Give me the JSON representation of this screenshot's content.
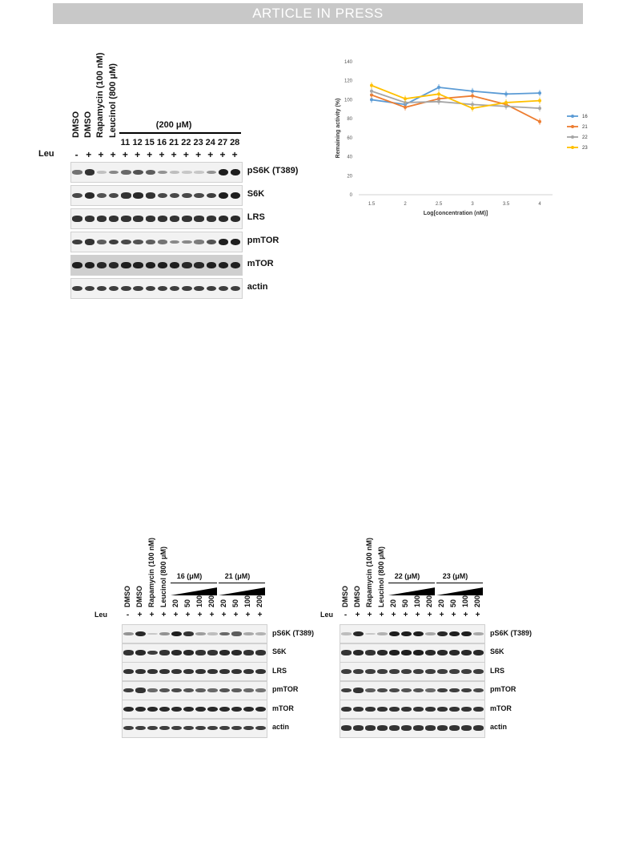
{
  "banner": "ARTICLE IN PRESS",
  "colors": {
    "s16": "#5b9bd5",
    "s21": "#ed7d31",
    "s22": "#a5a5a5",
    "s23": "#ffc000"
  },
  "panelA": {
    "leu_label": "Leu",
    "lane_labels": [
      "DMSO",
      "DMSO",
      "Rapamycin (100 nM)",
      "Leucinol (800 μM)"
    ],
    "group_header": "(200 μM)",
    "compounds": [
      "11",
      "12",
      "15",
      "16",
      "21",
      "22",
      "23",
      "24",
      "27",
      "28"
    ],
    "leu_signs": [
      "-",
      "+",
      "+",
      "+",
      "+",
      "+",
      "+",
      "+",
      "+",
      "+",
      "+",
      "+",
      "+",
      "+"
    ],
    "blots": [
      {
        "label": "pS6K (T389)",
        "bg": "light",
        "intensity": [
          0.45,
          0.75,
          0.08,
          0.35,
          0.5,
          0.6,
          0.55,
          0.3,
          0.1,
          0.05,
          0.05,
          0.3,
          1.0,
          1.0
        ]
      },
      {
        "label": "S6K",
        "bg": "light",
        "intensity": [
          0.65,
          0.8,
          0.6,
          0.65,
          0.75,
          0.8,
          0.75,
          0.65,
          0.65,
          0.65,
          0.65,
          0.7,
          1.0,
          1.0
        ]
      },
      {
        "label": "LRS",
        "bg": "light",
        "intensity": [
          0.75,
          0.75,
          0.75,
          0.75,
          0.75,
          0.75,
          0.75,
          0.75,
          0.75,
          0.75,
          0.75,
          0.75,
          0.8,
          0.8
        ]
      },
      {
        "label": "pmTOR",
        "bg": "light",
        "intensity": [
          0.7,
          0.75,
          0.55,
          0.7,
          0.65,
          0.6,
          0.55,
          0.45,
          0.35,
          0.35,
          0.4,
          0.6,
          0.9,
          0.95
        ]
      },
      {
        "label": "mTOR",
        "bg": "gray",
        "intensity": [
          0.85,
          0.85,
          0.8,
          0.8,
          0.85,
          0.85,
          0.85,
          0.85,
          0.85,
          0.8,
          0.8,
          0.85,
          0.95,
          0.95
        ]
      },
      {
        "label": "actin",
        "bg": "light",
        "intensity": [
          0.7,
          0.7,
          0.7,
          0.7,
          0.7,
          0.7,
          0.7,
          0.7,
          0.7,
          0.7,
          0.7,
          0.7,
          0.7,
          0.7
        ]
      }
    ]
  },
  "chart_data": {
    "type": "line",
    "title": "",
    "xlabel": "Log[concentration (nM)]",
    "ylabel": "Remaining activity (%)",
    "categories": [
      "1.5",
      "2",
      "2.5",
      "3",
      "3.5",
      "4"
    ],
    "yticks": [
      "0",
      "20",
      "40",
      "60",
      "80",
      "100",
      "120",
      "140"
    ],
    "ylim": [
      0,
      140
    ],
    "grid": false,
    "legend": "right",
    "series": [
      {
        "name": "16",
        "color": "#5b9bd5",
        "values": [
          100,
          95,
          113,
          109,
          106,
          107
        ]
      },
      {
        "name": "21",
        "color": "#ed7d31",
        "values": [
          105,
          92,
          101,
          104,
          95,
          77
        ]
      },
      {
        "name": "22",
        "color": "#a5a5a5",
        "values": [
          109,
          97,
          98,
          95,
          93,
          91
        ]
      },
      {
        "name": "23",
        "color": "#ffc000",
        "values": [
          115,
          101,
          106,
          91,
          97,
          99
        ]
      }
    ]
  },
  "panelB": {
    "leu_label": "Leu",
    "lane_labels": [
      "DMSO",
      "DMSO",
      "Rapamycin (100 nM)",
      "Leucinol (800 μM)"
    ],
    "group_headers": [
      "16 (μM)",
      "21 (μM)"
    ],
    "doses": [
      "20",
      "50",
      "100",
      "200",
      "20",
      "50",
      "100",
      "200"
    ],
    "leu_signs": [
      "-",
      "+",
      "+",
      "+",
      "+",
      "+",
      "+",
      "+",
      "+",
      "+",
      "+",
      "+"
    ],
    "blots": [
      {
        "label": "pS6K (T389)",
        "bg": "light",
        "intensity": [
          0.3,
          0.8,
          0.05,
          0.3,
          0.85,
          0.75,
          0.25,
          0.1,
          0.5,
          0.55,
          0.2,
          0.15
        ]
      },
      {
        "label": "S6K",
        "bg": "light",
        "intensity": [
          0.75,
          0.8,
          0.7,
          0.75,
          0.8,
          0.8,
          0.75,
          0.75,
          0.8,
          0.8,
          0.75,
          0.75
        ]
      },
      {
        "label": "LRS",
        "bg": "light",
        "intensity": [
          0.75,
          0.75,
          0.75,
          0.75,
          0.75,
          0.75,
          0.75,
          0.75,
          0.75,
          0.75,
          0.75,
          0.75
        ]
      },
      {
        "label": "pmTOR",
        "bg": "light",
        "intensity": [
          0.7,
          0.75,
          0.5,
          0.6,
          0.65,
          0.6,
          0.55,
          0.5,
          0.6,
          0.55,
          0.5,
          0.45
        ]
      },
      {
        "label": "mTOR",
        "bg": "light",
        "intensity": [
          0.8,
          0.8,
          0.8,
          0.8,
          0.8,
          0.8,
          0.8,
          0.8,
          0.8,
          0.8,
          0.8,
          0.8
        ]
      },
      {
        "label": "actin",
        "bg": "light",
        "intensity": [
          0.7,
          0.7,
          0.7,
          0.7,
          0.7,
          0.7,
          0.7,
          0.7,
          0.7,
          0.7,
          0.7,
          0.7
        ]
      }
    ]
  },
  "panelC": {
    "leu_label": "Leu",
    "lane_labels": [
      "DMSO",
      "DMSO",
      "Rapamycin (100 nM)",
      "Leucinol (800 μM)"
    ],
    "group_headers": [
      "22 (μM)",
      "23 (μM)"
    ],
    "doses": [
      "20",
      "50",
      "100",
      "200",
      "20",
      "50",
      "100",
      "200"
    ],
    "leu_signs": [
      "-",
      "+",
      "+",
      "+",
      "+",
      "+",
      "+",
      "+",
      "+",
      "+",
      "+",
      "+"
    ],
    "blots": [
      {
        "label": "pS6K (T389)",
        "bg": "light",
        "intensity": [
          0.1,
          0.8,
          0.05,
          0.15,
          0.85,
          0.85,
          0.9,
          0.2,
          0.8,
          0.85,
          0.95,
          0.2
        ]
      },
      {
        "label": "S6K",
        "bg": "light",
        "intensity": [
          0.75,
          0.8,
          0.75,
          0.8,
          0.85,
          0.85,
          0.85,
          0.8,
          0.8,
          0.8,
          0.8,
          0.8
        ]
      },
      {
        "label": "LRS",
        "bg": "light",
        "intensity": [
          0.7,
          0.7,
          0.7,
          0.7,
          0.7,
          0.7,
          0.7,
          0.7,
          0.7,
          0.7,
          0.7,
          0.7
        ]
      },
      {
        "label": "pmTOR",
        "bg": "light",
        "intensity": [
          0.7,
          0.75,
          0.55,
          0.65,
          0.65,
          0.6,
          0.6,
          0.5,
          0.7,
          0.7,
          0.7,
          0.65
        ]
      },
      {
        "label": "mTOR",
        "bg": "light",
        "intensity": [
          0.75,
          0.75,
          0.75,
          0.75,
          0.75,
          0.75,
          0.75,
          0.75,
          0.75,
          0.75,
          0.75,
          0.75
        ]
      },
      {
        "label": "actin",
        "bg": "light",
        "intensity": [
          0.75,
          0.75,
          0.75,
          0.75,
          0.75,
          0.75,
          0.75,
          0.75,
          0.75,
          0.75,
          0.75,
          0.75
        ]
      }
    ]
  }
}
